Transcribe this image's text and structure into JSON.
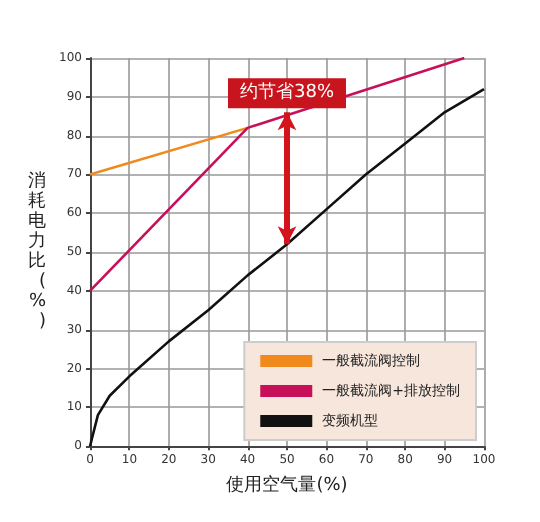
{
  "chart_data": {
    "type": "line",
    "xlabel": "使用空气量(%)",
    "ylabel": "消耗电力比(%)",
    "xlim": [
      0,
      100
    ],
    "ylim": [
      0,
      100
    ],
    "xticks": [
      0,
      10,
      20,
      30,
      40,
      50,
      60,
      70,
      80,
      90,
      100
    ],
    "yticks": [
      0,
      10,
      20,
      30,
      40,
      50,
      60,
      70,
      80,
      90,
      100
    ],
    "grid": true,
    "legend": "bottom right",
    "marker": "none",
    "line_style": "solid",
    "annotations": [
      {
        "text": "约节省38%",
        "x": 50,
        "y": 86
      }
    ],
    "series": [
      {
        "name": "一般截流阀控制",
        "color": "#f08a1c",
        "x": [
          0,
          40
        ],
        "values": [
          70,
          82
        ]
      },
      {
        "name": "一般截流阀+排放控制",
        "color": "#c8105a",
        "x": [
          0,
          40,
          95
        ],
        "values": [
          40,
          82,
          100
        ]
      },
      {
        "name": "变频机型",
        "color": "#111111",
        "x": [
          0,
          2,
          5,
          10,
          20,
          30,
          40,
          50,
          60,
          70,
          80,
          90,
          100
        ],
        "values": [
          0,
          8,
          13,
          18,
          27,
          35,
          44,
          52,
          61,
          70,
          78,
          86,
          92
        ]
      }
    ]
  }
}
